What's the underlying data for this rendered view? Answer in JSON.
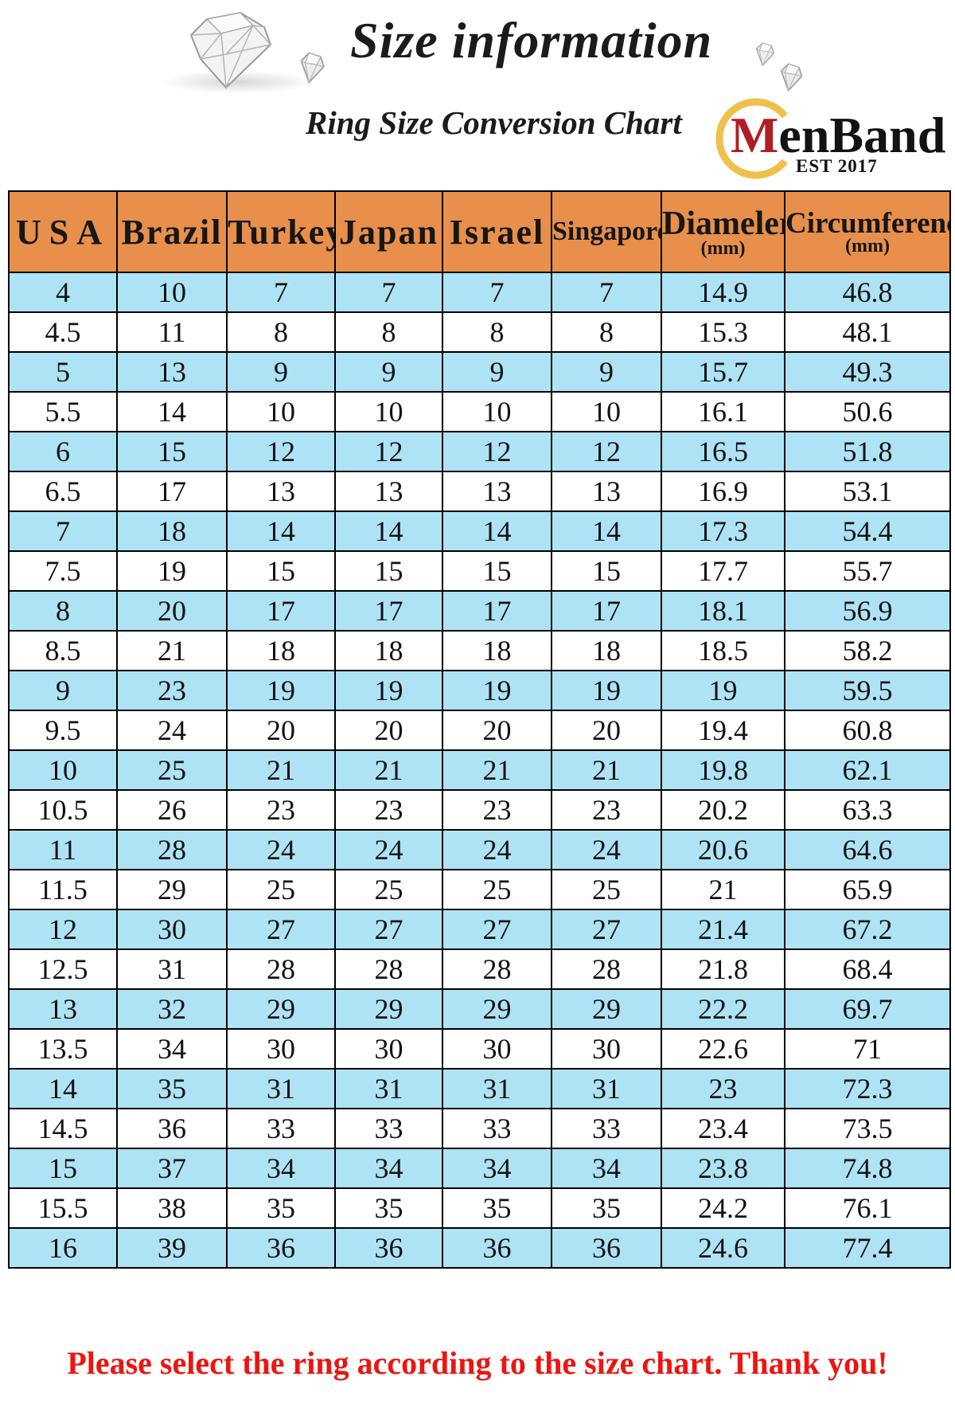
{
  "title": "Size information",
  "subtitle": "Ring Size Conversion Chart",
  "logo": {
    "name_first_letter": "M",
    "name_rest": "enBand",
    "established": "EST 2017",
    "ring_color": "#EFC04B",
    "initial_color": "#B01E23"
  },
  "chart_data": {
    "type": "table",
    "title": "Ring Size Conversion Chart",
    "columns": [
      {
        "label": "USA",
        "unit": ""
      },
      {
        "label": "Brazil",
        "unit": ""
      },
      {
        "label": "Turkey",
        "unit": ""
      },
      {
        "label": "Japan",
        "unit": ""
      },
      {
        "label": "Israel",
        "unit": ""
      },
      {
        "label": "Singapore",
        "unit": ""
      },
      {
        "label": "Diameler",
        "unit": "(mm)"
      },
      {
        "label": "Circumference",
        "unit": "(mm)"
      }
    ],
    "rows": [
      [
        "4",
        "10",
        "7",
        "7",
        "7",
        "7",
        "14.9",
        "46.8"
      ],
      [
        "4.5",
        "11",
        "8",
        "8",
        "8",
        "8",
        "15.3",
        "48.1"
      ],
      [
        "5",
        "13",
        "9",
        "9",
        "9",
        "9",
        "15.7",
        "49.3"
      ],
      [
        "5.5",
        "14",
        "10",
        "10",
        "10",
        "10",
        "16.1",
        "50.6"
      ],
      [
        "6",
        "15",
        "12",
        "12",
        "12",
        "12",
        "16.5",
        "51.8"
      ],
      [
        "6.5",
        "17",
        "13",
        "13",
        "13",
        "13",
        "16.9",
        "53.1"
      ],
      [
        "7",
        "18",
        "14",
        "14",
        "14",
        "14",
        "17.3",
        "54.4"
      ],
      [
        "7.5",
        "19",
        "15",
        "15",
        "15",
        "15",
        "17.7",
        "55.7"
      ],
      [
        "8",
        "20",
        "17",
        "17",
        "17",
        "17",
        "18.1",
        "56.9"
      ],
      [
        "8.5",
        "21",
        "18",
        "18",
        "18",
        "18",
        "18.5",
        "58.2"
      ],
      [
        "9",
        "23",
        "19",
        "19",
        "19",
        "19",
        "19",
        "59.5"
      ],
      [
        "9.5",
        "24",
        "20",
        "20",
        "20",
        "20",
        "19.4",
        "60.8"
      ],
      [
        "10",
        "25",
        "21",
        "21",
        "21",
        "21",
        "19.8",
        "62.1"
      ],
      [
        "10.5",
        "26",
        "23",
        "23",
        "23",
        "23",
        "20.2",
        "63.3"
      ],
      [
        "11",
        "28",
        "24",
        "24",
        "24",
        "24",
        "20.6",
        "64.6"
      ],
      [
        "11.5",
        "29",
        "25",
        "25",
        "25",
        "25",
        "21",
        "65.9"
      ],
      [
        "12",
        "30",
        "27",
        "27",
        "27",
        "27",
        "21.4",
        "67.2"
      ],
      [
        "12.5",
        "31",
        "28",
        "28",
        "28",
        "28",
        "21.8",
        "68.4"
      ],
      [
        "13",
        "32",
        "29",
        "29",
        "29",
        "29",
        "22.2",
        "69.7"
      ],
      [
        "13.5",
        "34",
        "30",
        "30",
        "30",
        "30",
        "22.6",
        "71"
      ],
      [
        "14",
        "35",
        "31",
        "31",
        "31",
        "31",
        "23",
        "72.3"
      ],
      [
        "14.5",
        "36",
        "33",
        "33",
        "33",
        "33",
        "23.4",
        "73.5"
      ],
      [
        "15",
        "37",
        "34",
        "34",
        "34",
        "34",
        "23.8",
        "74.8"
      ],
      [
        "15.5",
        "38",
        "35",
        "35",
        "35",
        "35",
        "24.2",
        "76.1"
      ],
      [
        "16",
        "39",
        "36",
        "36",
        "36",
        "36",
        "24.6",
        "77.4"
      ]
    ],
    "style": {
      "header_bg": "#E78F4B",
      "alt_row_bg": "#AEE3F5",
      "row_bg": "#FFFFFF",
      "border_color": "#000000"
    }
  },
  "footer": {
    "note": "Please select the ring according to the size chart. Thank you!",
    "note_color": "#EC1510"
  }
}
